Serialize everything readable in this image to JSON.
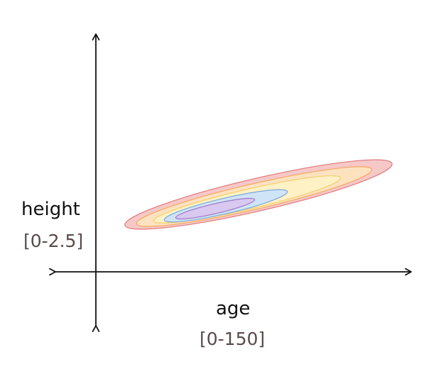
{
  "axes": {
    "y": {
      "name": "height",
      "range_text": "[0-2.5]"
    },
    "x": {
      "name": "age",
      "range_text": "[0-150]"
    }
  },
  "colors": {
    "axis": "#111111",
    "range_text": "#5a4a4a",
    "contour_levels": [
      {
        "fill": "#f7c8c8",
        "stroke": "#e07a7a"
      },
      {
        "fill": "#fde2c0",
        "stroke": "#f0a860"
      },
      {
        "fill": "#fff1c6",
        "stroke": "#f2cf6e"
      },
      {
        "fill": "#cfe4f7",
        "stroke": "#7ea7d8"
      },
      {
        "fill": "#d9c8ef",
        "stroke": "#9a78c8"
      }
    ]
  }
}
